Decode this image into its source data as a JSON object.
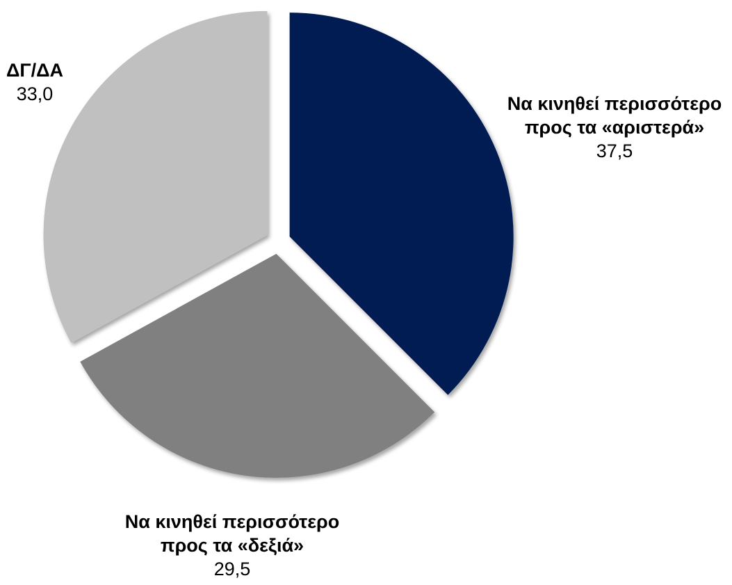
{
  "chart_data": {
    "type": "pie",
    "title": "",
    "slices": [
      {
        "label_lines": [
          "Να κινηθεί περισσότερο",
          "προς τα «αριστερά»"
        ],
        "value": 37.5,
        "value_label": "37,5",
        "color": "#041b52"
      },
      {
        "label_lines": [
          "Να κινηθεί περισσότερο",
          "προς τα «δεξιά»"
        ],
        "value": 29.5,
        "value_label": "29,5",
        "color": "#808080"
      },
      {
        "label_lines": [
          "ΔΓ/ΔΑ"
        ],
        "value": 33.0,
        "value_label": "33,0",
        "color": "#c0c0c0"
      }
    ],
    "legend": "none",
    "exploded": true
  }
}
